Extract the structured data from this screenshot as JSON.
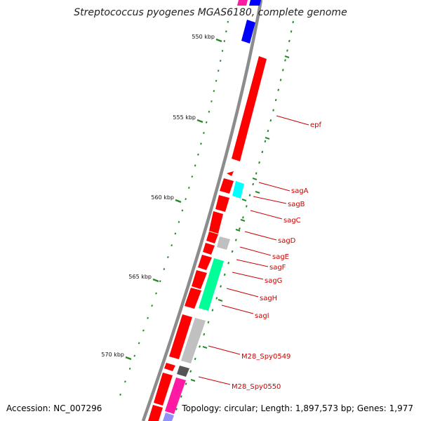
{
  "title": "Streptococcus pyogenes MGAS6180, complete genome",
  "footer": {
    "accession": "Accession: NC_007296",
    "summary": "Topology: circular; Length: 1,897,573 bp; Genes: 1,977"
  },
  "scale": {
    "ticks": [
      "550 kbp",
      "555 kbp",
      "560 kbp",
      "565 kbp",
      "570 kbp"
    ]
  },
  "genes": [
    {
      "name": "epf"
    },
    {
      "name": "sagA"
    },
    {
      "name": "sagB"
    },
    {
      "name": "sagC"
    },
    {
      "name": "sagD"
    },
    {
      "name": "sagE"
    },
    {
      "name": "sagF"
    },
    {
      "name": "sagG"
    },
    {
      "name": "sagH"
    },
    {
      "name": "sagI"
    },
    {
      "name": "M28_Spy0549"
    },
    {
      "name": "M28_Spy0550"
    }
  ],
  "colors": {
    "backbone": "#8c8c8c",
    "cds_red": "#ff0000",
    "blue": "#0000ff",
    "cyan": "#00ffff",
    "green": "#00ff99",
    "magenta": "#ff1aa3",
    "grey": "#c0c0c0",
    "dark_grey": "#555555",
    "gc_tick": "#2a8a2a",
    "label": "#cc0000"
  }
}
